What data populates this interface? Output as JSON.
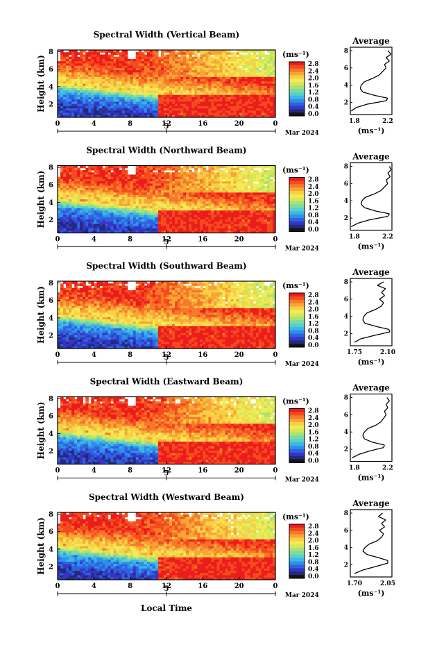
{
  "page": {
    "xlabel": "Local Time"
  },
  "colorbar": {
    "unit_label": "(ms⁻¹)",
    "tick_labels": [
      "2.8",
      "2.4",
      "2.0",
      "1.6",
      "1.2",
      "0.8",
      "0.4",
      "0.0"
    ],
    "colors": [
      "#eb1c1c",
      "#f54a1e",
      "#f7782a",
      "#f7a636",
      "#f8cf45",
      "#f4ea55",
      "#d4e858",
      "#a7e275",
      "#7fdaa0",
      "#59d0c8",
      "#3fb7e6",
      "#2f90ea",
      "#2f62e0",
      "#3436c9",
      "#242a7a",
      "#141414"
    ]
  },
  "chart_data": [
    {
      "type": "heatmap",
      "title": "Spectral Width (Vertical Beam)",
      "ylabel": "Height (km)",
      "x_ticks": [
        "0",
        "4",
        "8",
        "12",
        "16",
        "20",
        "0"
      ],
      "ylim": [
        0.5,
        8.2
      ],
      "y_ticks": [
        "2",
        "4",
        "6",
        "8"
      ],
      "date_day": "5",
      "date_label": "Mar 2024",
      "avg_profile": {
        "title": "Average",
        "xlabel": "(ms⁻¹)",
        "x_ticks": [
          "1.8",
          "2.2"
        ],
        "xlim": [
          1.75,
          2.25
        ],
        "height": [
          1.0,
          1.4,
          1.8,
          2.2,
          2.5,
          2.8,
          3.2,
          3.6,
          4.0,
          4.4,
          4.8,
          5.2,
          5.6,
          6.0,
          6.4,
          6.8,
          7.2,
          7.6,
          8.0
        ],
        "width": [
          1.76,
          1.82,
          1.95,
          2.18,
          2.2,
          2.05,
          1.9,
          1.87,
          1.88,
          1.92,
          2.02,
          2.1,
          2.14,
          2.18,
          2.16,
          2.22,
          2.18,
          2.24,
          2.2
        ]
      }
    },
    {
      "type": "heatmap",
      "title": "Spectral Width (Northward Beam)",
      "ylabel": "Height (km)",
      "x_ticks": [
        "0",
        "4",
        "8",
        "12",
        "16",
        "20",
        "0"
      ],
      "ylim": [
        0.5,
        8.2
      ],
      "y_ticks": [
        "2",
        "4",
        "6",
        "8"
      ],
      "date_day": "5",
      "date_label": "Mar 2024",
      "avg_profile": {
        "title": "Average",
        "xlabel": "(ms⁻¹)",
        "x_ticks": [
          "1.8",
          "2.2"
        ],
        "xlim": [
          1.75,
          2.25
        ],
        "height": [
          1.0,
          1.4,
          1.8,
          2.2,
          2.5,
          2.8,
          3.2,
          3.6,
          4.0,
          4.4,
          4.8,
          5.2,
          5.6,
          6.0,
          6.4,
          6.8,
          7.2,
          7.6,
          8.0
        ],
        "width": [
          1.76,
          1.84,
          1.98,
          2.2,
          2.22,
          2.06,
          1.92,
          1.88,
          1.89,
          1.93,
          2.04,
          2.12,
          2.16,
          2.2,
          2.18,
          2.23,
          2.2,
          2.24,
          2.22
        ]
      }
    },
    {
      "type": "heatmap",
      "title": "Spectral Width (Southward Beam)",
      "ylabel": "Height (km)",
      "x_ticks": [
        "0",
        "4",
        "8",
        "12",
        "16",
        "20",
        "0"
      ],
      "ylim": [
        0.5,
        8.2
      ],
      "y_ticks": [
        "2",
        "4",
        "6",
        "8"
      ],
      "date_day": "5",
      "date_label": "Mar 2024",
      "avg_profile": {
        "title": "Average",
        "xlabel": "(ms⁻¹)",
        "x_ticks": [
          "1.75",
          "2.10"
        ],
        "xlim": [
          1.72,
          2.12
        ],
        "height": [
          1.0,
          1.4,
          1.8,
          2.2,
          2.5,
          2.8,
          3.2,
          3.6,
          4.0,
          4.4,
          4.8,
          5.2,
          5.6,
          6.0,
          6.4,
          6.8,
          7.2,
          7.6,
          8.0
        ],
        "width": [
          1.76,
          1.82,
          1.95,
          2.1,
          2.09,
          1.98,
          1.86,
          1.84,
          1.85,
          1.88,
          1.96,
          2.02,
          2.04,
          2.0,
          2.05,
          2.02,
          2.06,
          1.98,
          2.04
        ]
      }
    },
    {
      "type": "heatmap",
      "title": "Spectral Width (Eastward Beam)",
      "ylabel": "Height (km)",
      "x_ticks": [
        "0",
        "4",
        "8",
        "12",
        "16",
        "20",
        "0"
      ],
      "ylim": [
        0.5,
        8.2
      ],
      "y_ticks": [
        "2",
        "4",
        "6",
        "8"
      ],
      "date_day": "5",
      "date_label": "Mar 2024",
      "avg_profile": {
        "title": "Average",
        "xlabel": "(ms⁻¹)",
        "x_ticks": [
          "1.8",
          "2.2"
        ],
        "xlim": [
          1.75,
          2.25
        ],
        "height": [
          1.0,
          1.4,
          1.8,
          2.2,
          2.5,
          2.8,
          3.2,
          3.6,
          4.0,
          4.4,
          4.8,
          5.2,
          5.6,
          6.0,
          6.4,
          6.8,
          7.2,
          7.6,
          8.0
        ],
        "width": [
          1.77,
          1.85,
          1.98,
          2.15,
          2.16,
          2.02,
          1.92,
          1.9,
          1.92,
          1.96,
          2.06,
          2.12,
          2.15,
          2.18,
          2.16,
          2.2,
          2.18,
          2.22,
          2.19
        ]
      }
    },
    {
      "type": "heatmap",
      "title": "Spectral Width (Westward Beam)",
      "ylabel": "Height (km)",
      "x_ticks": [
        "0",
        "4",
        "8",
        "12",
        "16",
        "20",
        "0"
      ],
      "ylim": [
        0.5,
        8.2
      ],
      "y_ticks": [
        "2",
        "4",
        "6",
        "8"
      ],
      "date_day": "5",
      "date_label": "Mar 2024",
      "avg_profile": {
        "title": "Average",
        "xlabel": "(ms⁻¹)",
        "x_ticks": [
          "1.70",
          "2.05"
        ],
        "xlim": [
          1.68,
          2.08
        ],
        "height": [
          1.0,
          1.4,
          1.8,
          2.2,
          2.5,
          2.8,
          3.2,
          3.6,
          4.0,
          4.4,
          4.8,
          5.2,
          5.6,
          6.0,
          6.4,
          6.8,
          7.2,
          7.6,
          8.0
        ],
        "width": [
          1.72,
          1.8,
          1.92,
          2.04,
          2.04,
          1.96,
          1.84,
          1.8,
          1.82,
          1.86,
          1.94,
          1.98,
          2.0,
          1.96,
          2.01,
          1.98,
          2.02,
          1.95,
          1.99
        ]
      }
    }
  ]
}
